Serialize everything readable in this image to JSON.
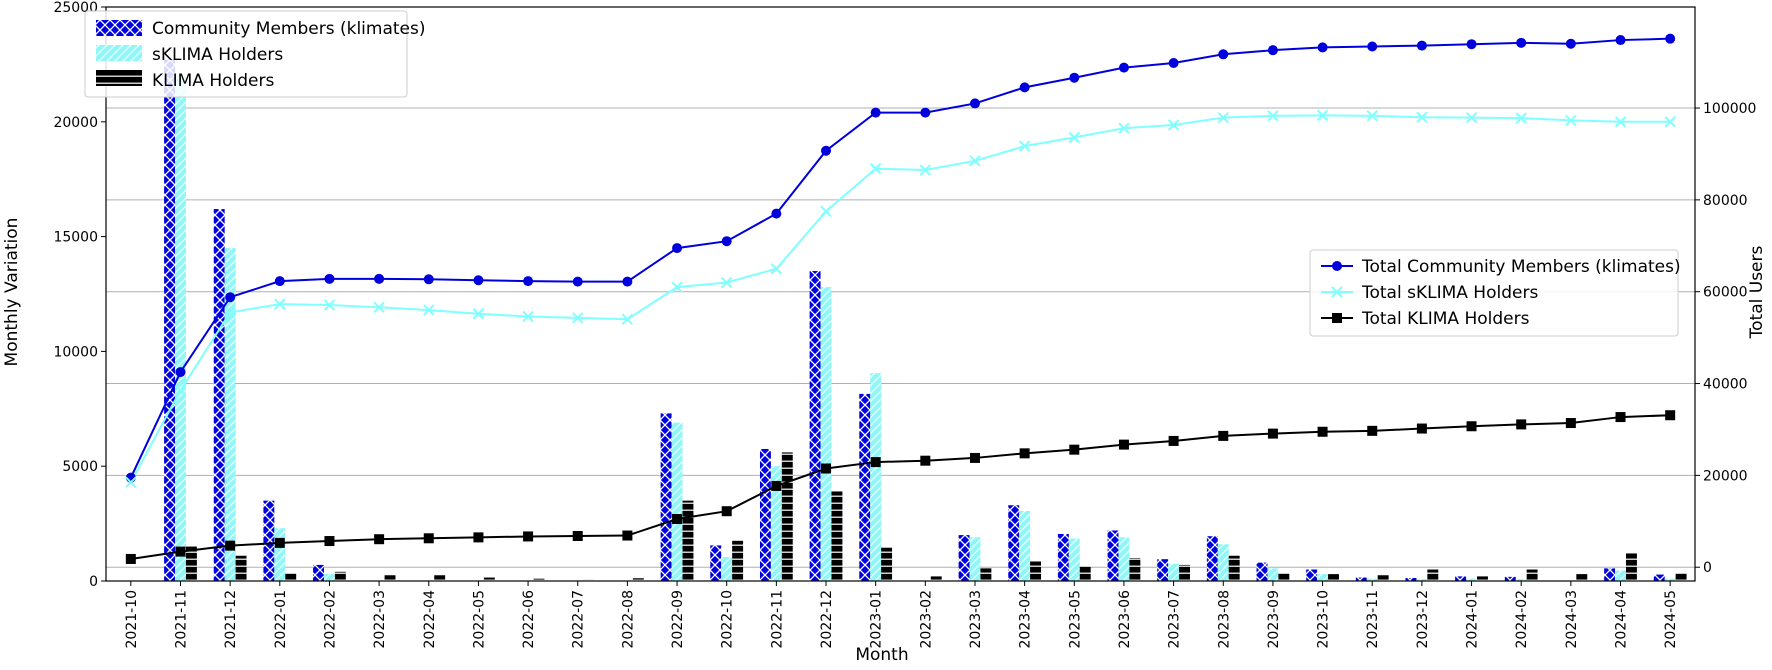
{
  "colors": {
    "members": "#0000dd",
    "sklima": "#8ff7f7",
    "sklima_line": "#80ffff",
    "klima": "#000000",
    "grid": "#b0b0b0"
  },
  "chart_data": {
    "type": "bar",
    "xlabel": "Month",
    "ylabel_left": "Monthly Variation",
    "ylabel_right": "Total Users",
    "ylim_left": [
      0,
      25000
    ],
    "ylim_right": [
      -3000,
      122000
    ],
    "yticks_left": [
      "0",
      "5000",
      "10000",
      "15000",
      "20000",
      "25000"
    ],
    "yticks_right": [
      "0",
      "20000",
      "40000",
      "60000",
      "80000",
      "100000"
    ],
    "grid": "horizontal",
    "categories": [
      "2021-10",
      "2021-11",
      "2021-12",
      "2022-01",
      "2022-02",
      "2022-03",
      "2022-04",
      "2022-05",
      "2022-06",
      "2022-07",
      "2022-08",
      "2022-09",
      "2022-10",
      "2022-11",
      "2022-12",
      "2023-01",
      "2023-02",
      "2023-03",
      "2023-04",
      "2023-05",
      "2023-06",
      "2023-07",
      "2023-08",
      "2023-09",
      "2023-10",
      "2023-11",
      "2023-12",
      "2024-01",
      "2024-02",
      "2024-03",
      "2024-04",
      "2024-05"
    ],
    "bar_series": [
      {
        "name": "Community Members (klimates)",
        "values": [
          0,
          22700,
          16200,
          3500,
          700,
          0,
          0,
          0,
          0,
          0,
          0,
          7300,
          1550,
          5750,
          13500,
          8150,
          0,
          2000,
          3300,
          2050,
          2200,
          950,
          1950,
          800,
          500,
          150,
          130,
          200,
          180,
          0,
          550,
          280
        ]
      },
      {
        "name": "sKLIMA Holders",
        "values": [
          0,
          22000,
          14500,
          2300,
          300,
          0,
          0,
          0,
          0,
          0,
          0,
          6900,
          1050,
          5000,
          12800,
          9050,
          0,
          1900,
          3050,
          1850,
          1900,
          750,
          1600,
          550,
          300,
          100,
          80,
          100,
          80,
          0,
          450,
          100
        ]
      },
      {
        "name": "KLIMA Holders",
        "values": [
          0,
          1500,
          1100,
          350,
          400,
          250,
          250,
          150,
          100,
          60,
          120,
          3500,
          1750,
          5600,
          3900,
          1450,
          200,
          550,
          850,
          650,
          1000,
          700,
          1100,
          350,
          300,
          250,
          500,
          200,
          500,
          300,
          1200,
          350
        ]
      }
    ],
    "line_series": [
      {
        "name": "Total Community Members (klimates)",
        "values": [
          19500,
          42500,
          58800,
          62300,
          62800,
          62800,
          62700,
          62500,
          62300,
          62200,
          62200,
          69500,
          71000,
          77000,
          90700,
          99000,
          99000,
          101000,
          104500,
          106600,
          108800,
          109800,
          111700,
          112600,
          113200,
          113400,
          113600,
          113900,
          114200,
          114000,
          114800,
          115100
        ]
      },
      {
        "name": "Total sKLIMA Holders",
        "values": [
          18500,
          38500,
          55500,
          57300,
          57100,
          56600,
          56000,
          55200,
          54600,
          54300,
          54000,
          61000,
          62000,
          65000,
          77500,
          86800,
          86500,
          88500,
          91700,
          93600,
          95600,
          96300,
          97900,
          98300,
          98400,
          98300,
          98000,
          97900,
          97800,
          97300,
          97000,
          97000
        ]
      },
      {
        "name": "Total KLIMA Holders",
        "values": [
          1800,
          3400,
          4700,
          5300,
          5700,
          6100,
          6300,
          6500,
          6700,
          6800,
          6900,
          10500,
          12200,
          17700,
          21500,
          22900,
          23200,
          23800,
          24800,
          25600,
          26700,
          27500,
          28600,
          29100,
          29500,
          29700,
          30200,
          30700,
          31100,
          31400,
          32700,
          33100
        ]
      }
    ]
  }
}
